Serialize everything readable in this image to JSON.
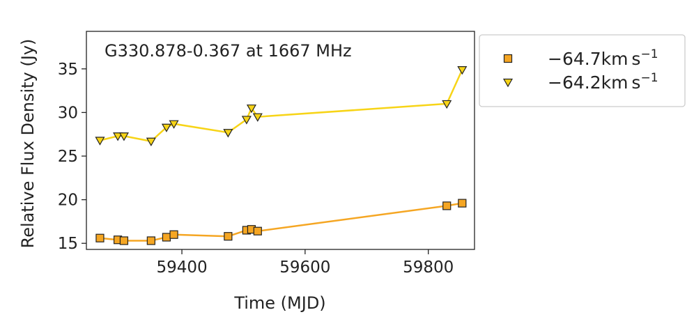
{
  "chart_data": {
    "type": "line",
    "title": "G330.878-0.367 at 1667 MHz",
    "xlabel": "Time (MJD)",
    "ylabel": "Relative Flux Density (Jy)",
    "xlim": [
      59245,
      59875
    ],
    "ylim": [
      14.3,
      39.3
    ],
    "xticks": [
      59400,
      59600,
      59800
    ],
    "yticks": [
      15,
      20,
      25,
      30,
      35
    ],
    "grid": false,
    "legend_position": "outside-right",
    "series": [
      {
        "name": "−64.7km s",
        "name_superscript": "−1",
        "marker": "square",
        "color": "#f5a623",
        "x": [
          59267,
          59296,
          59306,
          59350,
          59375,
          59387,
          59475,
          59505,
          59513,
          59523,
          59830,
          59855
        ],
        "y": [
          15.6,
          15.4,
          15.3,
          15.3,
          15.7,
          16.0,
          15.8,
          16.5,
          16.6,
          16.4,
          19.3,
          19.6
        ]
      },
      {
        "name": "−64.2km s",
        "name_superscript": "−1",
        "marker": "triangle-down",
        "color": "#f7d417",
        "x": [
          59267,
          59296,
          59306,
          59350,
          59375,
          59387,
          59475,
          59505,
          59513,
          59523,
          59830,
          59855
        ],
        "y": [
          26.8,
          27.3,
          27.3,
          26.7,
          28.3,
          28.7,
          27.7,
          29.2,
          30.5,
          29.5,
          31.0,
          34.9
        ]
      }
    ]
  }
}
